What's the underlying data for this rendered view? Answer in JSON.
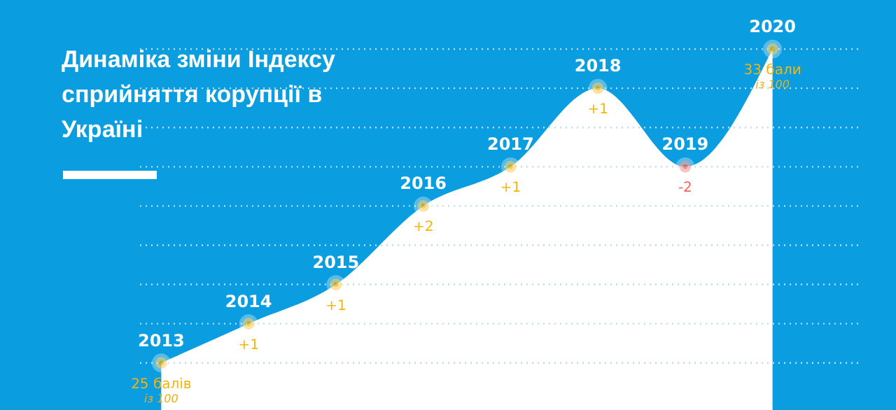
{
  "chart_data": {
    "type": "area",
    "title": "Динаміка зміни Індексу сприйняття корупції в Україні",
    "categories": [
      "2013",
      "2014",
      "2015",
      "2016",
      "2017",
      "2018",
      "2019",
      "2020"
    ],
    "values": [
      25,
      26,
      27,
      29,
      30,
      32,
      30,
      33
    ],
    "color": "#ffffff",
    "colors": [
      "#f5b50a",
      "#f5b50a",
      "#f5b50a",
      "#f5b50a",
      "#f5b50a",
      "#f5b50a",
      "#f0645a",
      "#f5b50a"
    ],
    "value_labels": [
      "25 балів",
      null,
      null,
      null,
      null,
      null,
      null,
      "33 бали"
    ],
    "annotations": [
      {
        "text": "із 100",
        "x": "2013",
        "y": 25
      },
      {
        "text": "+1",
        "x": "2014",
        "y": 26
      },
      {
        "text": "+1",
        "x": "2015",
        "y": 27
      },
      {
        "text": "+2",
        "x": "2016",
        "y": 29
      },
      {
        "text": "+1",
        "x": "2017",
        "y": 30
      },
      {
        "text": "+1",
        "x": "2018",
        "y": 32
      },
      {
        "text": "-2",
        "x": "2019",
        "y": 30
      },
      {
        "text": "із 100",
        "x": "2020",
        "y": 33
      }
    ],
    "ylim": [
      23.8,
      34.25
    ],
    "yticks": [
      25,
      26,
      27,
      28,
      29,
      30,
      31,
      32,
      33
    ],
    "grid": "y",
    "tick_labels": false,
    "marker": "circle"
  }
}
